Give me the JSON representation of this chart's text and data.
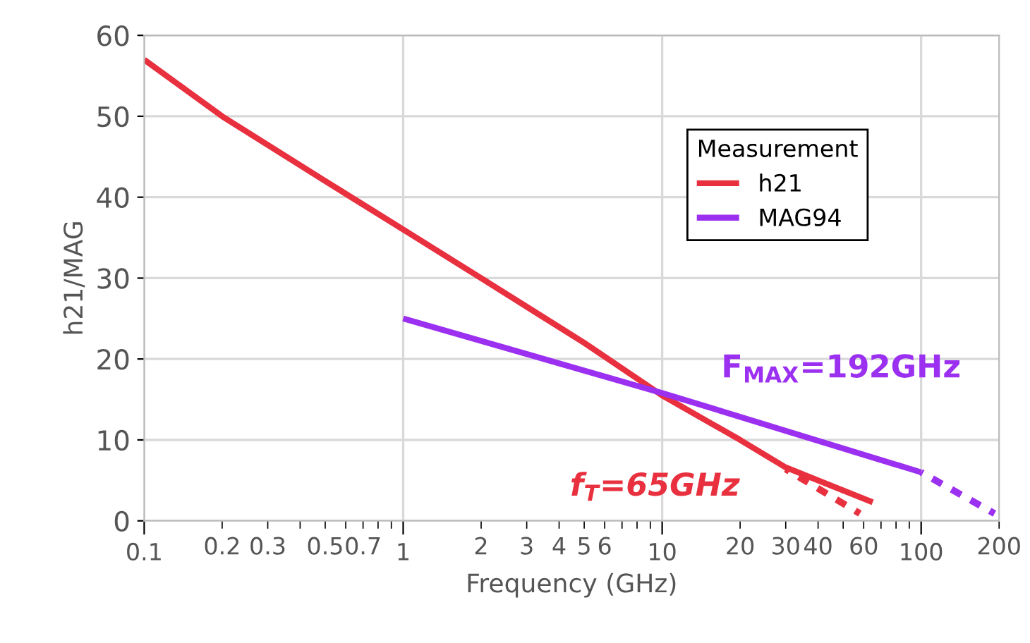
{
  "chart_data": {
    "type": "line",
    "xlabel": "Frequency (GHz)",
    "ylabel": "h21/MAG",
    "legend_title": "Measurement",
    "legend": "top right",
    "grid": true,
    "log": "x",
    "xlim": [
      0.1,
      200
    ],
    "ylim": [
      0,
      60
    ],
    "yticks": [
      0,
      10,
      20,
      30,
      40,
      50,
      60
    ],
    "xticks": [
      0.1,
      {
        "value": 0.2,
        "label": "0.2"
      },
      {
        "value": 0.3,
        "label": "0.3"
      },
      {
        "value": 0.4,
        "label": null
      },
      {
        "value": 0.5,
        "label": "0.5"
      },
      {
        "value": 0.6,
        "label": null
      },
      {
        "value": 0.7,
        "label": "0.7"
      },
      {
        "value": 0.8,
        "label": null
      },
      {
        "value": 0.9,
        "label": null
      },
      1,
      {
        "value": 2,
        "label": "2"
      },
      {
        "value": 3,
        "label": "3"
      },
      {
        "value": 4,
        "label": "4"
      },
      {
        "value": 5,
        "label": "5"
      },
      {
        "value": 6,
        "label": "6"
      },
      {
        "value": 7,
        "label": null
      },
      {
        "value": 8,
        "label": null
      },
      {
        "value": 9,
        "label": null
      },
      10,
      {
        "value": 20,
        "label": "20"
      },
      {
        "value": 30,
        "label": "30"
      },
      {
        "value": 40,
        "label": "40"
      },
      {
        "value": 50,
        "label": null
      },
      {
        "value": 60,
        "label": "60"
      },
      {
        "value": 70,
        "label": null
      },
      {
        "value": 80,
        "label": null
      },
      {
        "value": 90,
        "label": null
      },
      100,
      {
        "value": 200,
        "label": "200"
      }
    ],
    "series": [
      {
        "name": "h21",
        "color": "#e8303f",
        "x": [
          0.1,
          0.2,
          0.5,
          1,
          2,
          5,
          10,
          20,
          30,
          40,
          65
        ],
        "values": [
          57,
          50,
          42,
          36,
          30,
          22,
          15.5,
          10,
          6.6,
          5,
          2.3
        ]
      },
      {
        "name": "MAG94",
        "color": "#9b30f0",
        "x": [
          1,
          10,
          100
        ],
        "values": [
          25,
          15.8,
          6
        ]
      },
      {
        "color": "#e8303f",
        "line_style": "dashed",
        "x": [
          30,
          58
        ],
        "values": [
          6.4,
          0.9
        ]
      },
      {
        "color": "#9b30f0",
        "line_style": "dashed",
        "x": [
          100,
          192
        ],
        "values": [
          6,
          0.9
        ]
      }
    ],
    "annotations": [
      "F$_{MAX}$=192GHz",
      "f$_{T}$=65GHz"
    ]
  }
}
